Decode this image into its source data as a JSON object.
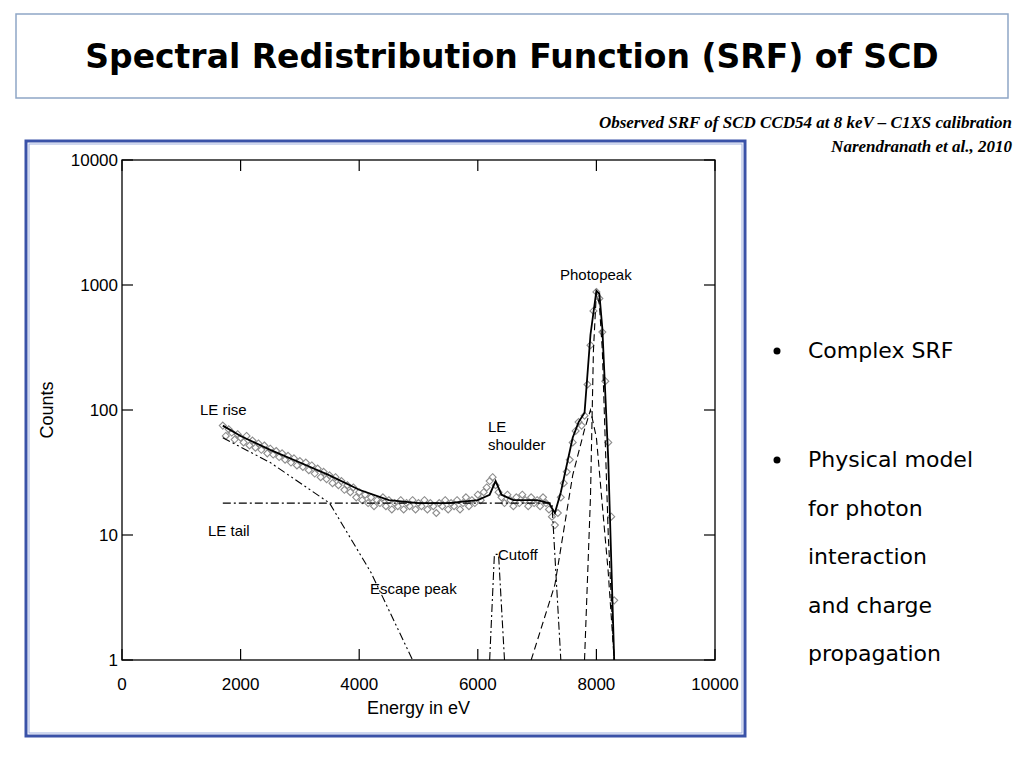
{
  "slide": {
    "title": "Spectral Redistribution Function (SRF) of SCD",
    "caption": [
      "Observed SRF of  SCD CCD54 at  8 keV – C1XS calibration",
      "Narendranath et al., 2010"
    ],
    "bullets": [
      [
        "Complex SRF"
      ],
      [
        "Physical model",
        "for photon",
        "interaction",
        "and charge",
        "propagation"
      ]
    ]
  },
  "chart_data": {
    "type": "scatter",
    "x_label": "Energy in eV",
    "y_label": "Counts",
    "xlim": [
      0,
      10000
    ],
    "ylim": [
      1,
      10000
    ],
    "xticks": [
      0,
      2000,
      4000,
      6000,
      8000,
      10000
    ],
    "yticks": [
      1,
      10,
      100,
      1000,
      10000
    ],
    "log": "y",
    "grid": false,
    "series": [
      {
        "type": "scatter",
        "marker": "diamond",
        "color": "#8c8c8c",
        "x": [
          1700,
          1750,
          1800,
          1850,
          1900,
          1950,
          2000,
          2050,
          2100,
          2150,
          2200,
          2250,
          2300,
          2350,
          2400,
          2450,
          2500,
          2550,
          2600,
          2650,
          2700,
          2750,
          2800,
          2850,
          2900,
          2950,
          3000,
          3050,
          3100,
          3150,
          3200,
          3250,
          3300,
          3350,
          3400,
          3450,
          3500,
          3550,
          3600,
          3650,
          3700,
          3750,
          3800,
          3850,
          3900,
          3950,
          4000,
          4050,
          4100,
          4150,
          4200,
          4250,
          4300,
          4350,
          4400,
          4450,
          4500,
          4550,
          4600,
          4650,
          4700,
          4750,
          4800,
          4850,
          4900,
          4950,
          5000,
          5050,
          5100,
          5150,
          5200,
          5250,
          5300,
          5350,
          5400,
          5450,
          5500,
          5550,
          5600,
          5650,
          5700,
          5750,
          5800,
          5850,
          5900,
          5950,
          6000,
          6050,
          6100,
          6150,
          6200,
          6250,
          6300,
          6350,
          6400,
          6450,
          6500,
          6550,
          6600,
          6650,
          6700,
          6750,
          6800,
          6850,
          6900,
          6950,
          7000,
          7050,
          7100,
          7150,
          7200,
          7250,
          7300,
          7350,
          7400,
          7450,
          7500,
          7550,
          7600,
          7650,
          7700,
          7750,
          7800,
          7850,
          7900,
          7950,
          8000,
          8050,
          8100,
          8150,
          8200,
          8250,
          8300
        ],
        "values": [
          75,
          62,
          70,
          66,
          58,
          64,
          60,
          55,
          62,
          52,
          57,
          50,
          54,
          48,
          52,
          45,
          49,
          44,
          47,
          42,
          45,
          40,
          43,
          38,
          41,
          36,
          39,
          35,
          38,
          33,
          36,
          31,
          34,
          29,
          32,
          28,
          30,
          26,
          29,
          25,
          27,
          23,
          25,
          22,
          24,
          20,
          22,
          19,
          21,
          18,
          20,
          17,
          19,
          18,
          20,
          17,
          19,
          16,
          18,
          17,
          19,
          16,
          18,
          17,
          19,
          16,
          18,
          17,
          19,
          16,
          18,
          17,
          15,
          18,
          17,
          19,
          16,
          18,
          17,
          19,
          16,
          18,
          20,
          17,
          19,
          18,
          21,
          19,
          22,
          24,
          27,
          29,
          25,
          22,
          20,
          18,
          21,
          19,
          17,
          20,
          18,
          21,
          19,
          17,
          20,
          18,
          19,
          17,
          20,
          18,
          16,
          14,
          12,
          15,
          20,
          26,
          32,
          40,
          55,
          68,
          80,
          75,
          90,
          160,
          330,
          620,
          880,
          780,
          420,
          170,
          55,
          14,
          3
        ]
      },
      {
        "type": "line",
        "line_style": "solid",
        "color": "#000000",
        "x": [
          1700,
          2000,
          2500,
          3000,
          3500,
          4000,
          4500,
          5000,
          5500,
          6000,
          6200,
          6300,
          6400,
          6600,
          7000,
          7200,
          7300,
          7400,
          7600,
          7700,
          7800,
          7900,
          8000,
          8050,
          8100,
          8200,
          8300
        ],
        "values": [
          75,
          62,
          48,
          38,
          30,
          23,
          19,
          18,
          18,
          19,
          21,
          27,
          21,
          19,
          19,
          18,
          15,
          22,
          60,
          80,
          95,
          400,
          900,
          850,
          450,
          40,
          1
        ]
      },
      {
        "type": "line",
        "line_style": "dash-dot",
        "color": "#000000",
        "x": [
          1700,
          7250,
          7400
        ],
        "values": [
          18,
          18,
          1
        ]
      },
      {
        "type": "line",
        "line_style": "dash-dot-dot",
        "color": "#000000",
        "x": [
          1700,
          2500,
          3500,
          4200,
          4900
        ],
        "values": [
          60,
          38,
          18,
          5,
          1
        ]
      },
      {
        "type": "line",
        "line_style": "dash-dot",
        "color": "#000000",
        "x": [
          6200,
          6280,
          6350,
          6450
        ],
        "values": [
          1,
          7,
          7,
          1
        ]
      },
      {
        "type": "line",
        "line_style": "dashed",
        "color": "#000000",
        "x": [
          6900,
          7300,
          7600,
          7800,
          7900,
          8000,
          8200,
          8300
        ],
        "values": [
          1,
          4,
          30,
          70,
          100,
          60,
          5,
          1
        ]
      },
      {
        "type": "line",
        "line_style": "dashed",
        "color": "#000000",
        "x": [
          7800,
          7900,
          7950,
          8000,
          8050,
          8100,
          8200,
          8300
        ],
        "values": [
          1,
          20,
          300,
          880,
          700,
          300,
          10,
          1
        ]
      }
    ],
    "annotations": [
      {
        "text": [
          "Photopeak"
        ],
        "x": 7386,
        "y": 1100
      },
      {
        "text": [
          "LE rise"
        ],
        "x": 1315,
        "y": 91
      },
      {
        "text": [
          "LE",
          "shoulder"
        ],
        "x": 6172,
        "y": 67
      },
      {
        "text": [
          "LE tail"
        ],
        "x": 1450,
        "y": 9.8
      },
      {
        "text": [
          "Cutoff"
        ],
        "x": 6340,
        "y": 6.3
      },
      {
        "text": [
          "Escape peak"
        ],
        "x": 4182,
        "y": 3.4
      }
    ]
  }
}
